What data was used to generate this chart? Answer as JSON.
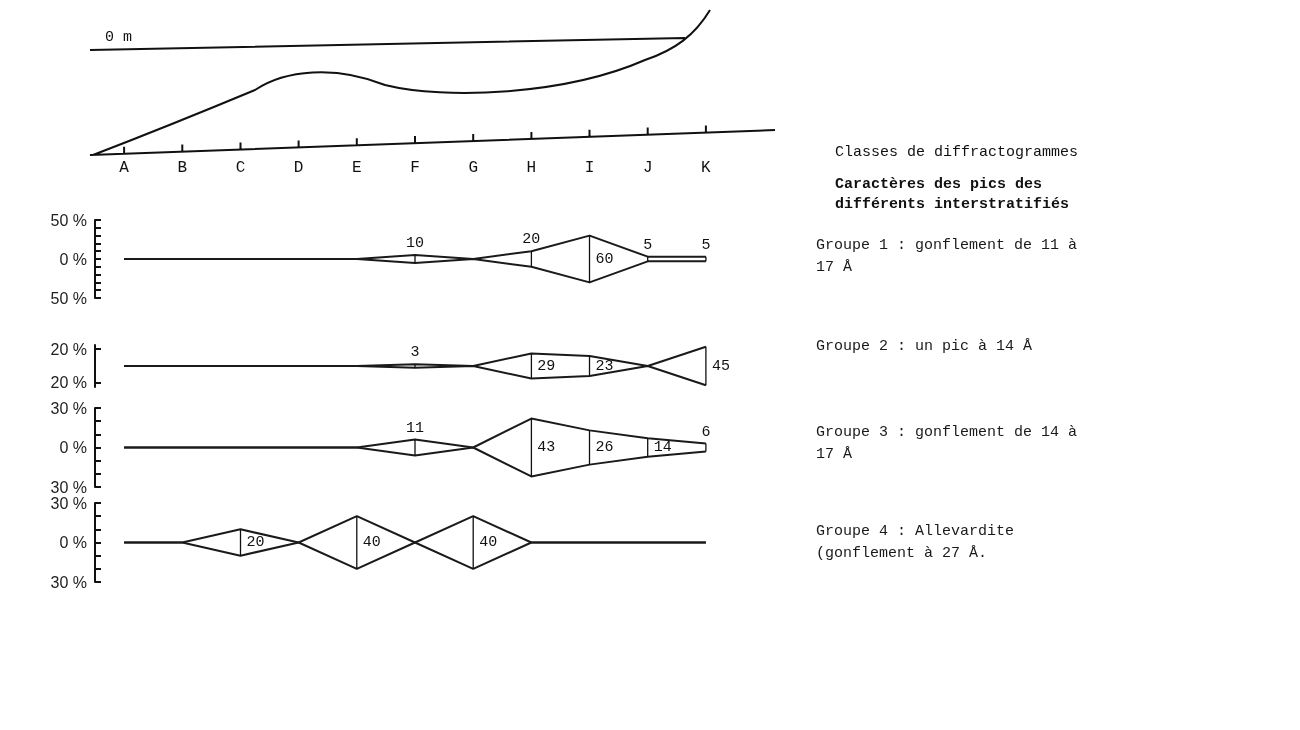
{
  "chart_data": [
    {
      "type": "other",
      "title": "Classes de diffractogrammes",
      "subtitle": "Caractères des pics des différents interstratifiés",
      "annotations": [
        "0 m"
      ]
    },
    {
      "type": "line",
      "categories": [
        "A",
        "B",
        "C",
        "D",
        "E",
        "F",
        "G",
        "H",
        "I",
        "J",
        "K"
      ],
      "marker": "none",
      "ylim": [
        -50,
        50
      ],
      "yticks": [
        {
          "value": 50,
          "label": "50 %"
        },
        {
          "value": 40,
          "label": null
        },
        {
          "value": 30,
          "label": null
        },
        {
          "value": 20,
          "label": null
        },
        {
          "value": 10,
          "label": null
        },
        {
          "value": 0,
          "label": "0 %"
        },
        {
          "value": -10,
          "label": null
        },
        {
          "value": -20,
          "label": null
        },
        {
          "value": -30,
          "label": null
        },
        {
          "value": -40,
          "label": null
        },
        {
          "value": -50,
          "label": "50 %"
        }
      ],
      "series": [
        {
          "name": "Groupe 1 : gonflement de 11 à 17 Å",
          "color": "#1a1a1a",
          "values": [
            0,
            0,
            0,
            0,
            0,
            5,
            0,
            10,
            30,
            3,
            3
          ]
        },
        {
          "color": "#1a1a1a",
          "values": [
            0,
            0,
            0,
            0,
            0,
            -5,
            0,
            -10,
            -30,
            -3,
            -3
          ]
        }
      ],
      "annotations": [
        "10",
        "20",
        "60",
        "5",
        "5"
      ]
    },
    {
      "type": "line",
      "categories": [
        null,
        null,
        null,
        null,
        null,
        null,
        null,
        null,
        null,
        null,
        null
      ],
      "marker": "none",
      "ylim": [
        -25,
        25
      ],
      "yticks": [
        {
          "value": 20,
          "label": "20 %"
        },
        {
          "value": -20,
          "label": "20 %"
        }
      ],
      "series": [
        {
          "name": "Groupe 2 : un pic à 14 Å",
          "color": "#1a1a1a",
          "values": [
            0,
            0,
            0,
            0,
            0,
            2,
            0,
            15,
            12,
            0,
            23
          ]
        },
        {
          "color": "#1a1a1a",
          "values": [
            0,
            0,
            0,
            0,
            0,
            -2,
            0,
            -15,
            -12,
            0,
            -23
          ]
        }
      ],
      "annotations": [
        "3",
        "29",
        "23",
        "45"
      ]
    },
    {
      "type": "line",
      "categories": [
        null,
        null,
        null,
        null,
        null,
        null,
        null,
        null,
        null,
        null,
        null
      ],
      "marker": "none",
      "ylim": [
        -30,
        30
      ],
      "yticks": [
        {
          "value": 30,
          "label": "30 %"
        },
        {
          "value": 20,
          "label": null
        },
        {
          "value": 10,
          "label": null
        },
        {
          "value": 0,
          "label": "0 %"
        },
        {
          "value": -10,
          "label": null
        },
        {
          "value": -20,
          "label": null
        },
        {
          "value": -30,
          "label": "30 %"
        }
      ],
      "series": [
        {
          "name": "Groupe 3 : gonflement de 14 à 17 Å",
          "color": "#1a1a1a",
          "values": [
            0,
            0,
            0,
            0,
            0,
            6,
            0,
            22,
            13,
            7,
            3
          ]
        },
        {
          "color": "#1a1a1a",
          "values": [
            0,
            0,
            0,
            0,
            0,
            -6,
            0,
            -22,
            -13,
            -7,
            -3
          ]
        }
      ],
      "annotations": [
        "11",
        "43",
        "26",
        "14",
        "6"
      ]
    },
    {
      "type": "line",
      "categories": [
        null,
        null,
        null,
        null,
        null,
        null,
        null,
        null,
        null,
        null,
        null
      ],
      "marker": "none",
      "ylim": [
        -30,
        30
      ],
      "yticks": [
        {
          "value": 30,
          "label": "30 %"
        },
        {
          "value": 20,
          "label": null
        },
        {
          "value": 10,
          "label": null
        },
        {
          "value": 0,
          "label": "0 %"
        },
        {
          "value": -10,
          "label": null
        },
        {
          "value": -20,
          "label": null
        },
        {
          "value": -30,
          "label": "30 %"
        }
      ],
      "series": [
        {
          "name": "Groupe 4 : Allevardite (gonflement à 27 Å.",
          "color": "#1a1a1a",
          "values": [
            0,
            0,
            10,
            0,
            20,
            0,
            20,
            0,
            0,
            0,
            0
          ]
        },
        {
          "color": "#1a1a1a",
          "values": [
            0,
            0,
            -10,
            0,
            -20,
            0,
            -20,
            0,
            0,
            0,
            0
          ]
        }
      ],
      "annotations": [
        "20",
        "40",
        "40"
      ]
    }
  ]
}
